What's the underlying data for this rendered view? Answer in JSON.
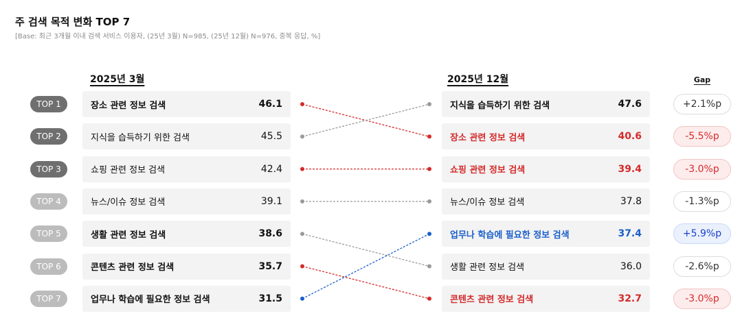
{
  "header": {
    "title": "주 검색 목적 변화 TOP 7",
    "base": "[Base: 최근 3개월 이내 검색 서비스 이용자, (25년 3월) N=985, (25년 12월) N=976, 중복 응답, %]"
  },
  "colors": {
    "text": "#111111",
    "red": "#d42b2b",
    "blue": "#1a5fc9",
    "gray_line": "#9a9a9a",
    "pill_dark": "#6f6f6f",
    "pill_light": "#bcbcbc",
    "box_bg": "#f3f3f3"
  },
  "chart_data": {
    "type": "table",
    "title": "주 검색 목적 변화 TOP 7",
    "left_header": "2025년 3월",
    "right_header": "2025년 12월",
    "gap_header": "Gap",
    "ranks": [
      {
        "label": "TOP 1",
        "style": "dark"
      },
      {
        "label": "TOP 2",
        "style": "dark"
      },
      {
        "label": "TOP 3",
        "style": "dark"
      },
      {
        "label": "TOP 4",
        "style": "light"
      },
      {
        "label": "TOP 5",
        "style": "light"
      },
      {
        "label": "TOP 6",
        "style": "light"
      },
      {
        "label": "TOP 7",
        "style": "light"
      }
    ],
    "march": [
      {
        "label": "장소 관련 정보 검색",
        "value": "46.1",
        "bold": true
      },
      {
        "label": "지식을 습득하기 위한 검색",
        "value": "45.5",
        "bold": false
      },
      {
        "label": "쇼핑 관련 정보 검색",
        "value": "42.4",
        "bold": false
      },
      {
        "label": "뉴스/이슈 정보 검색",
        "value": "39.1",
        "bold": false
      },
      {
        "label": "생활 관련 정보 검색",
        "value": "38.6",
        "bold": true
      },
      {
        "label": "콘텐츠 관련 정보 검색",
        "value": "35.7",
        "bold": true
      },
      {
        "label": "업무나 학습에 필요한 정보 검색",
        "value": "31.5",
        "bold": true
      }
    ],
    "december": [
      {
        "label": "지식을 습득하기 위한 검색",
        "value": "47.6",
        "bold": true,
        "color": "text"
      },
      {
        "label": "장소 관련 정보 검색",
        "value": "40.6",
        "bold": true,
        "color": "red"
      },
      {
        "label": "쇼핑 관련 정보 검색",
        "value": "39.4",
        "bold": true,
        "color": "red"
      },
      {
        "label": "뉴스/이슈 정보 검색",
        "value": "37.8",
        "bold": false,
        "color": "text"
      },
      {
        "label": "업무나 학습에 필요한 정보 검색",
        "value": "37.4",
        "bold": true,
        "color": "blue"
      },
      {
        "label": "생활 관련 정보 검색",
        "value": "36.0",
        "bold": false,
        "color": "text"
      },
      {
        "label": "콘텐츠 관련 정보 검색",
        "value": "32.7",
        "bold": true,
        "color": "red"
      }
    ],
    "gaps": [
      {
        "text": "+2.1%p",
        "type": "neutral"
      },
      {
        "text": "-5.5%p",
        "type": "neg"
      },
      {
        "text": "-3.0%p",
        "type": "neg"
      },
      {
        "text": "-1.3%p",
        "type": "neutral"
      },
      {
        "text": "+5.9%p",
        "type": "pos"
      },
      {
        "text": "-2.6%p",
        "type": "neutral"
      },
      {
        "text": "-3.0%p",
        "type": "neg"
      }
    ],
    "links": [
      {
        "from": 1,
        "to": 2,
        "color": "red"
      },
      {
        "from": 2,
        "to": 1,
        "color": "gray_line"
      },
      {
        "from": 3,
        "to": 3,
        "color": "red"
      },
      {
        "from": 4,
        "to": 4,
        "color": "gray_line"
      },
      {
        "from": 5,
        "to": 6,
        "color": "gray_line"
      },
      {
        "from": 6,
        "to": 7,
        "color": "red"
      },
      {
        "from": 7,
        "to": 5,
        "color": "blue"
      }
    ]
  }
}
